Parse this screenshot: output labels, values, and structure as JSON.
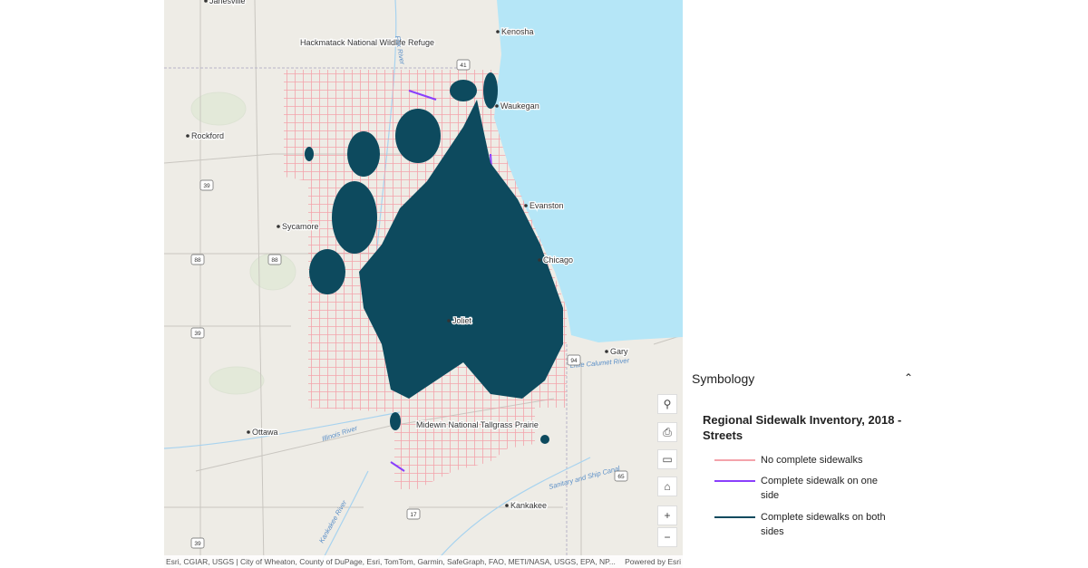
{
  "map": {
    "places": [
      "Janesville",
      "Kenosha",
      "Waukegan",
      "Rockford",
      "Evanston",
      "Sycamore",
      "Chicago",
      "Gary",
      "Ottawa",
      "Kankakee",
      "Joliet",
      "Hackmatack National Wildlife Refuge",
      "Midewin National Tallgrass Prairie"
    ],
    "rivers": [
      "Fox River",
      "Illinois River",
      "Kankakee River",
      "Little Calumet River",
      "Sanitary and Ship Canal"
    ],
    "shields": [
      "39",
      "88",
      "88",
      "39",
      "17",
      "41",
      "65",
      "94",
      "39"
    ],
    "attribution": "Esri, CGIAR, USGS | City of Wheaton, County of DuPage, Esri, TomTom, Garmin, SafeGraph, FAO, METI/NASA, USGS, EPA, NP...",
    "powered_by": "Powered by Esri",
    "network_colors": {
      "none": "#f4a3ab",
      "one": "#8a3ffc",
      "both": "#0d4a5e"
    }
  },
  "panel": {
    "title": "Symbology",
    "layer": "Regional Sidewalk Inventory, 2018 - Streets",
    "items": [
      {
        "label": "No complete sidewalks",
        "color": "#f4a3ab"
      },
      {
        "label": "Complete sidewalk on one side",
        "color": "#8a3ffc"
      },
      {
        "label": "Complete sidewalks on both sides",
        "color": "#0d4a5e"
      }
    ]
  }
}
